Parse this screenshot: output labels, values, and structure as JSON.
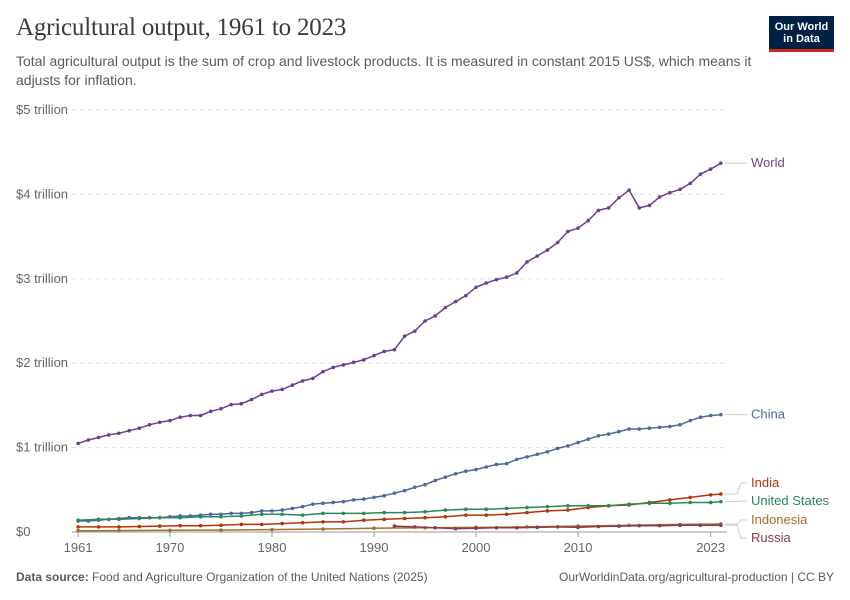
{
  "header": {
    "title": "Agricultural output, 1961 to 2023",
    "subtitle": "Total agricultural output is the sum of crop and livestock products. It is measured in constant 2015 US$, which means it adjusts for inflation."
  },
  "logo": {
    "line1": "Our World",
    "line2": "in Data",
    "bg_color": "#002147",
    "accent_color": "#ce261e"
  },
  "footer": {
    "source_label": "Data source:",
    "source_text": "Food and Agriculture Organization of the United Nations (2025)",
    "url_license": "OurWorldinData.org/agricultural-production | CC BY"
  },
  "chart_data": {
    "type": "line",
    "title": "Agricultural output, 1961 to 2023",
    "xlabel": "",
    "ylabel": "",
    "x_ticks": [
      1961,
      1970,
      1980,
      1990,
      2000,
      2010,
      2023
    ],
    "x_tick_labels": [
      "1961",
      "1970",
      "1980",
      "1990",
      "2000",
      "2010",
      "2023"
    ],
    "ylim": [
      0,
      5
    ],
    "y_ticks": [
      0,
      1,
      2,
      3,
      4,
      5
    ],
    "y_tick_labels": [
      "$0",
      "$1 trillion",
      "$2 trillion",
      "$3 trillion",
      "$4 trillion",
      "$5 trillion"
    ],
    "y_unit": "trillion constant 2015 US$",
    "grid": "horizontal dashed",
    "legend": "line labels at right",
    "series": [
      {
        "name": "World",
        "color": "#6d3e91",
        "points": [
          [
            1961,
            1.05
          ],
          [
            1962,
            1.09
          ],
          [
            1963,
            1.12
          ],
          [
            1964,
            1.15
          ],
          [
            1965,
            1.17
          ],
          [
            1966,
            1.2
          ],
          [
            1967,
            1.23
          ],
          [
            1968,
            1.27
          ],
          [
            1969,
            1.3
          ],
          [
            1970,
            1.32
          ],
          [
            1971,
            1.36
          ],
          [
            1972,
            1.38
          ],
          [
            1973,
            1.38
          ],
          [
            1974,
            1.43
          ],
          [
            1975,
            1.46
          ],
          [
            1976,
            1.51
          ],
          [
            1977,
            1.52
          ],
          [
            1978,
            1.57
          ],
          [
            1979,
            1.63
          ],
          [
            1980,
            1.67
          ],
          [
            1981,
            1.69
          ],
          [
            1982,
            1.74
          ],
          [
            1983,
            1.79
          ],
          [
            1984,
            1.82
          ],
          [
            1985,
            1.9
          ],
          [
            1986,
            1.95
          ],
          [
            1987,
            1.98
          ],
          [
            1988,
            2.01
          ],
          [
            1989,
            2.04
          ],
          [
            1990,
            2.09
          ],
          [
            1991,
            2.14
          ],
          [
            1992,
            2.16
          ],
          [
            1993,
            2.32
          ],
          [
            1994,
            2.38
          ],
          [
            1995,
            2.5
          ],
          [
            1996,
            2.56
          ],
          [
            1997,
            2.66
          ],
          [
            1998,
            2.73
          ],
          [
            1999,
            2.8
          ],
          [
            2000,
            2.9
          ],
          [
            2001,
            2.95
          ],
          [
            2002,
            2.99
          ],
          [
            2003,
            3.02
          ],
          [
            2004,
            3.07
          ],
          [
            2005,
            3.2
          ],
          [
            2006,
            3.27
          ],
          [
            2007,
            3.34
          ],
          [
            2008,
            3.43
          ],
          [
            2009,
            3.56
          ],
          [
            2010,
            3.6
          ],
          [
            2011,
            3.69
          ],
          [
            2012,
            3.81
          ],
          [
            2013,
            3.84
          ],
          [
            2014,
            3.96
          ],
          [
            2015,
            4.05
          ],
          [
            2016,
            3.84
          ],
          [
            2017,
            3.87
          ],
          [
            2018,
            3.97
          ],
          [
            2019,
            4.02
          ],
          [
            2020,
            4.06
          ],
          [
            2021,
            4.13
          ],
          [
            2022,
            4.24
          ],
          [
            2023,
            4.3
          ],
          [
            2024,
            4.37
          ]
        ]
      },
      {
        "name": "China",
        "color": "#4c6a9c",
        "points": [
          [
            1961,
            0.13
          ],
          [
            1962,
            0.13
          ],
          [
            1963,
            0.14
          ],
          [
            1964,
            0.15
          ],
          [
            1965,
            0.16
          ],
          [
            1966,
            0.17
          ],
          [
            1967,
            0.17
          ],
          [
            1968,
            0.17
          ],
          [
            1969,
            0.17
          ],
          [
            1970,
            0.18
          ],
          [
            1971,
            0.19
          ],
          [
            1972,
            0.19
          ],
          [
            1973,
            0.2
          ],
          [
            1974,
            0.21
          ],
          [
            1975,
            0.21
          ],
          [
            1976,
            0.22
          ],
          [
            1977,
            0.22
          ],
          [
            1978,
            0.23
          ],
          [
            1979,
            0.25
          ],
          [
            1980,
            0.25
          ],
          [
            1981,
            0.26
          ],
          [
            1982,
            0.28
          ],
          [
            1983,
            0.3
          ],
          [
            1984,
            0.33
          ],
          [
            1985,
            0.34
          ],
          [
            1986,
            0.35
          ],
          [
            1987,
            0.36
          ],
          [
            1988,
            0.38
          ],
          [
            1989,
            0.39
          ],
          [
            1990,
            0.41
          ],
          [
            1991,
            0.43
          ],
          [
            1992,
            0.46
          ],
          [
            1993,
            0.49
          ],
          [
            1994,
            0.53
          ],
          [
            1995,
            0.56
          ],
          [
            1996,
            0.61
          ],
          [
            1997,
            0.65
          ],
          [
            1998,
            0.69
          ],
          [
            1999,
            0.72
          ],
          [
            2000,
            0.74
          ],
          [
            2001,
            0.77
          ],
          [
            2002,
            0.8
          ],
          [
            2003,
            0.81
          ],
          [
            2004,
            0.86
          ],
          [
            2005,
            0.89
          ],
          [
            2006,
            0.92
          ],
          [
            2007,
            0.95
          ],
          [
            2008,
            0.99
          ],
          [
            2009,
            1.02
          ],
          [
            2010,
            1.06
          ],
          [
            2011,
            1.1
          ],
          [
            2012,
            1.14
          ],
          [
            2013,
            1.16
          ],
          [
            2014,
            1.19
          ],
          [
            2015,
            1.22
          ],
          [
            2016,
            1.22
          ],
          [
            2017,
            1.23
          ],
          [
            2018,
            1.24
          ],
          [
            2019,
            1.25
          ],
          [
            2020,
            1.27
          ],
          [
            2021,
            1.32
          ],
          [
            2022,
            1.36
          ],
          [
            2023,
            1.38
          ],
          [
            2024,
            1.39
          ]
        ]
      },
      {
        "name": "India",
        "color": "#b13507",
        "points": [
          [
            1961,
            0.06
          ],
          [
            1963,
            0.06
          ],
          [
            1965,
            0.06
          ],
          [
            1967,
            0.065
          ],
          [
            1969,
            0.07
          ],
          [
            1971,
            0.075
          ],
          [
            1973,
            0.075
          ],
          [
            1975,
            0.08
          ],
          [
            1977,
            0.09
          ],
          [
            1979,
            0.09
          ],
          [
            1981,
            0.1
          ],
          [
            1983,
            0.11
          ],
          [
            1985,
            0.12
          ],
          [
            1987,
            0.12
          ],
          [
            1989,
            0.14
          ],
          [
            1991,
            0.15
          ],
          [
            1993,
            0.16
          ],
          [
            1995,
            0.17
          ],
          [
            1997,
            0.18
          ],
          [
            1999,
            0.2
          ],
          [
            2001,
            0.2
          ],
          [
            2003,
            0.21
          ],
          [
            2005,
            0.23
          ],
          [
            2007,
            0.25
          ],
          [
            2009,
            0.26
          ],
          [
            2011,
            0.29
          ],
          [
            2013,
            0.31
          ],
          [
            2015,
            0.32
          ],
          [
            2017,
            0.35
          ],
          [
            2019,
            0.38
          ],
          [
            2021,
            0.41
          ],
          [
            2023,
            0.44
          ],
          [
            2024,
            0.45
          ]
        ]
      },
      {
        "name": "United States",
        "color": "#2d8757",
        "points": [
          [
            1961,
            0.14
          ],
          [
            1963,
            0.15
          ],
          [
            1965,
            0.15
          ],
          [
            1967,
            0.16
          ],
          [
            1969,
            0.17
          ],
          [
            1971,
            0.17
          ],
          [
            1973,
            0.18
          ],
          [
            1975,
            0.18
          ],
          [
            1977,
            0.19
          ],
          [
            1979,
            0.21
          ],
          [
            1981,
            0.21
          ],
          [
            1983,
            0.2
          ],
          [
            1985,
            0.22
          ],
          [
            1987,
            0.22
          ],
          [
            1989,
            0.22
          ],
          [
            1991,
            0.23
          ],
          [
            1993,
            0.23
          ],
          [
            1995,
            0.24
          ],
          [
            1997,
            0.26
          ],
          [
            1999,
            0.27
          ],
          [
            2001,
            0.27
          ],
          [
            2003,
            0.28
          ],
          [
            2005,
            0.29
          ],
          [
            2007,
            0.3
          ],
          [
            2009,
            0.31
          ],
          [
            2011,
            0.31
          ],
          [
            2013,
            0.31
          ],
          [
            2015,
            0.33
          ],
          [
            2017,
            0.34
          ],
          [
            2019,
            0.34
          ],
          [
            2021,
            0.35
          ],
          [
            2023,
            0.35
          ],
          [
            2024,
            0.36
          ]
        ]
      },
      {
        "name": "Indonesia",
        "color": "#a5702f",
        "points": [
          [
            1961,
            0.015
          ],
          [
            1965,
            0.017
          ],
          [
            1970,
            0.02
          ],
          [
            1975,
            0.022
          ],
          [
            1980,
            0.028
          ],
          [
            1985,
            0.035
          ],
          [
            1990,
            0.045
          ],
          [
            1995,
            0.05
          ],
          [
            2000,
            0.055
          ],
          [
            2005,
            0.06
          ],
          [
            2010,
            0.07
          ],
          [
            2015,
            0.08
          ],
          [
            2020,
            0.09
          ],
          [
            2024,
            0.095
          ]
        ]
      },
      {
        "name": "Russia",
        "color": "#8a3b47",
        "points": [
          [
            1992,
            0.07
          ],
          [
            1994,
            0.06
          ],
          [
            1996,
            0.05
          ],
          [
            1998,
            0.04
          ],
          [
            2000,
            0.045
          ],
          [
            2002,
            0.05
          ],
          [
            2004,
            0.05
          ],
          [
            2006,
            0.055
          ],
          [
            2008,
            0.06
          ],
          [
            2010,
            0.055
          ],
          [
            2012,
            0.065
          ],
          [
            2014,
            0.07
          ],
          [
            2016,
            0.075
          ],
          [
            2018,
            0.075
          ],
          [
            2020,
            0.08
          ],
          [
            2022,
            0.08
          ],
          [
            2024,
            0.08
          ]
        ]
      }
    ]
  }
}
